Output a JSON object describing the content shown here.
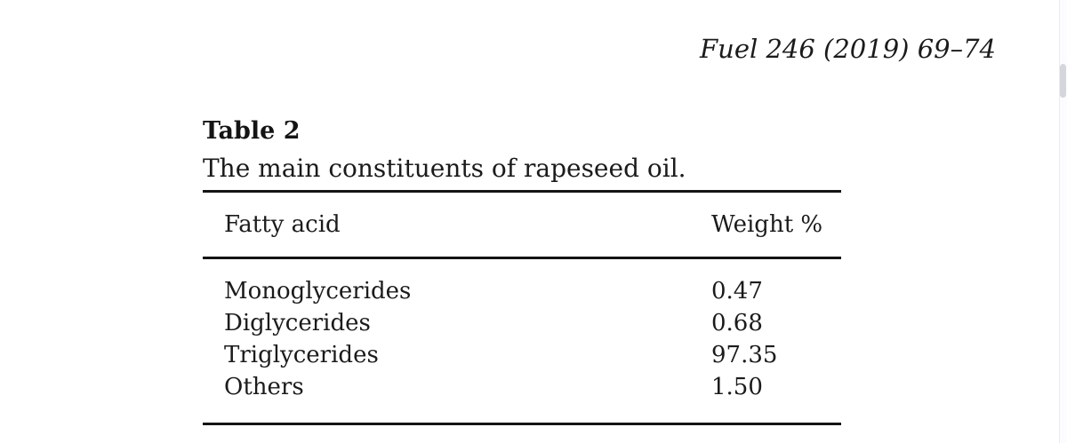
{
  "header": {
    "journal_ref": "Fuel 246 (2019) 69–74"
  },
  "table": {
    "label": "Table 2",
    "caption": "The main constituents of rapeseed oil.",
    "columns": [
      "Fatty acid",
      "Weight %"
    ],
    "rows": [
      {
        "name": "Monoglycerides",
        "value": "0.47"
      },
      {
        "name": "Diglycerides",
        "value": "0.68"
      },
      {
        "name": "Triglycerides",
        "value": "97.35"
      },
      {
        "name": "Others",
        "value": "1.50"
      }
    ]
  },
  "chart_data": {
    "type": "table",
    "title": "The main constituents of rapeseed oil.",
    "columns": [
      "Fatty acid",
      "Weight %"
    ],
    "categories": [
      "Monoglycerides",
      "Diglycerides",
      "Triglycerides",
      "Others"
    ],
    "values": [
      0.47,
      0.68,
      97.35,
      1.5
    ]
  },
  "colors": {
    "text": "#1b1b1b",
    "rule": "#141414",
    "scrollbar_track": "#fcfcfe",
    "scrollbar_thumb": "#d5d6db"
  }
}
